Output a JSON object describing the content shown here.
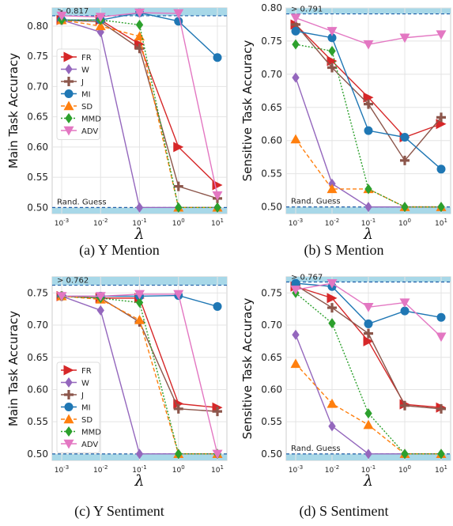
{
  "method_colors": {
    "FR": "#d62728",
    "W": "#9467bd",
    "J": "#8c564b",
    "MI": "#1f77b4",
    "SD": "#ff7f0e",
    "MMD": "#2ca02c",
    "ADV": "#e377c2"
  },
  "chart_data": [
    {
      "type": "line",
      "caption": "(a) Y Mention",
      "xlabel": "λ",
      "ylabel": "Main Task Accuracy",
      "x": [
        "10^-3",
        "10^-2",
        "10^-1",
        "10^0",
        "10^1"
      ],
      "x_exponents": [
        "-3",
        "-2",
        "-1",
        "0",
        "1"
      ],
      "ylim": [
        0.49,
        0.83
      ],
      "yticks": [
        "0.50",
        "0.55",
        "0.60",
        "0.65",
        "0.70",
        "0.75",
        "0.80"
      ],
      "upper_band_label": "> 0.817",
      "upper_band_value": 0.817,
      "lower_band_label": "Rand. Guess",
      "lower_band_value": 0.5,
      "legend": [
        "FR",
        "W",
        "J",
        "MI",
        "SD",
        "MMD",
        "ADV"
      ],
      "series": [
        {
          "name": "FR",
          "values": [
            0.81,
            0.81,
            0.77,
            0.6,
            0.537
          ]
        },
        {
          "name": "W",
          "values": [
            0.81,
            0.79,
            0.5,
            0.5,
            0.5
          ]
        },
        {
          "name": "J",
          "values": [
            0.81,
            0.807,
            0.763,
            0.535,
            0.515
          ]
        },
        {
          "name": "MI",
          "values": [
            0.81,
            0.81,
            0.822,
            0.808,
            0.748
          ]
        },
        {
          "name": "SD",
          "values": [
            0.81,
            0.8,
            0.783,
            0.5,
            0.5
          ]
        },
        {
          "name": "MMD",
          "values": [
            0.81,
            0.81,
            0.802,
            0.5,
            0.5
          ]
        },
        {
          "name": "ADV",
          "values": [
            0.817,
            0.815,
            0.822,
            0.821,
            0.52
          ]
        }
      ]
    },
    {
      "type": "line",
      "caption": "(b) S Mention",
      "xlabel": "λ",
      "ylabel": "Sensitive Task Accuracy",
      "x": [
        "10^-3",
        "10^-2",
        "10^-1",
        "10^0",
        "10^1"
      ],
      "x_exponents": [
        "-3",
        "-2",
        "-1",
        "0",
        "1"
      ],
      "ylim": [
        0.49,
        0.8
      ],
      "yticks": [
        "0.50",
        "0.55",
        "0.60",
        "0.65",
        "0.70",
        "0.75",
        "0.80"
      ],
      "upper_band_label": "> 0.791",
      "upper_band_value": 0.791,
      "lower_band_label": "Rand. Guess",
      "lower_band_value": 0.5,
      "series": [
        {
          "name": "FR",
          "values": [
            0.775,
            0.72,
            0.665,
            0.605,
            0.625
          ]
        },
        {
          "name": "W",
          "values": [
            0.695,
            0.535,
            0.5,
            0.5,
            0.5
          ]
        },
        {
          "name": "J",
          "values": [
            0.775,
            0.71,
            0.655,
            0.57,
            0.635
          ]
        },
        {
          "name": "MI",
          "values": [
            0.765,
            0.755,
            0.615,
            0.605,
            0.557
          ]
        },
        {
          "name": "SD",
          "values": [
            0.602,
            0.527,
            0.527,
            0.5,
            0.5
          ]
        },
        {
          "name": "MMD",
          "values": [
            0.745,
            0.735,
            0.527,
            0.5,
            0.5
          ]
        },
        {
          "name": "ADV",
          "values": [
            0.785,
            0.765,
            0.745,
            0.755,
            0.76
          ]
        }
      ]
    },
    {
      "type": "line",
      "caption": "(c) Y Sentiment",
      "xlabel": "λ",
      "ylabel": "Main Task Accuracy",
      "x": [
        "10^-3",
        "10^-2",
        "10^-1",
        "10^0",
        "10^1"
      ],
      "x_exponents": [
        "-3",
        "-2",
        "-1",
        "0",
        "1"
      ],
      "ylim": [
        0.49,
        0.775
      ],
      "yticks": [
        "0.50",
        "0.55",
        "0.60",
        "0.65",
        "0.70",
        "0.75"
      ],
      "upper_band_label": "> 0.762",
      "upper_band_value": 0.762,
      "lower_band_label": "",
      "lower_band_value": 0.5,
      "legend": [
        "FR",
        "W",
        "J",
        "MI",
        "SD",
        "MMD",
        "ADV"
      ],
      "series": [
        {
          "name": "FR",
          "values": [
            0.745,
            0.742,
            0.742,
            0.578,
            0.572
          ]
        },
        {
          "name": "W",
          "values": [
            0.745,
            0.723,
            0.5,
            0.5,
            0.5
          ]
        },
        {
          "name": "J",
          "values": [
            0.745,
            0.742,
            0.705,
            0.57,
            0.566
          ]
        },
        {
          "name": "MI",
          "values": [
            0.745,
            0.745,
            0.745,
            0.746,
            0.729
          ]
        },
        {
          "name": "SD",
          "values": [
            0.745,
            0.74,
            0.708,
            0.5,
            0.5
          ]
        },
        {
          "name": "MMD",
          "values": [
            0.745,
            0.742,
            0.735,
            0.5,
            0.5
          ]
        },
        {
          "name": "ADV",
          "values": [
            0.745,
            0.745,
            0.748,
            0.748,
            0.5
          ]
        }
      ]
    },
    {
      "type": "line",
      "caption": "(d) S Sentiment",
      "xlabel": "λ",
      "ylabel": "Sensitive Task Accuracy",
      "x": [
        "10^-3",
        "10^-2",
        "10^-1",
        "10^0",
        "10^1"
      ],
      "x_exponents": [
        "-3",
        "-2",
        "-1",
        "0",
        "1"
      ],
      "ylim": [
        0.49,
        0.775
      ],
      "yticks": [
        "0.50",
        "0.55",
        "0.60",
        "0.65",
        "0.70",
        "0.75"
      ],
      "upper_band_label": "> 0.767",
      "upper_band_value": 0.767,
      "lower_band_label": "Rand. Guess",
      "lower_band_value": 0.5,
      "series": [
        {
          "name": "FR",
          "values": [
            0.76,
            0.742,
            0.675,
            0.577,
            0.572
          ]
        },
        {
          "name": "W",
          "values": [
            0.685,
            0.543,
            0.5,
            0.5,
            0.5
          ]
        },
        {
          "name": "J",
          "values": [
            0.762,
            0.727,
            0.687,
            0.575,
            0.57
          ]
        },
        {
          "name": "MI",
          "values": [
            0.765,
            0.76,
            0.702,
            0.722,
            0.712
          ]
        },
        {
          "name": "SD",
          "values": [
            0.64,
            0.578,
            0.545,
            0.5,
            0.5
          ]
        },
        {
          "name": "MMD",
          "values": [
            0.75,
            0.703,
            0.563,
            0.5,
            0.5
          ]
        },
        {
          "name": "ADV",
          "values": [
            0.755,
            0.765,
            0.728,
            0.735,
            0.682
          ]
        }
      ]
    }
  ]
}
